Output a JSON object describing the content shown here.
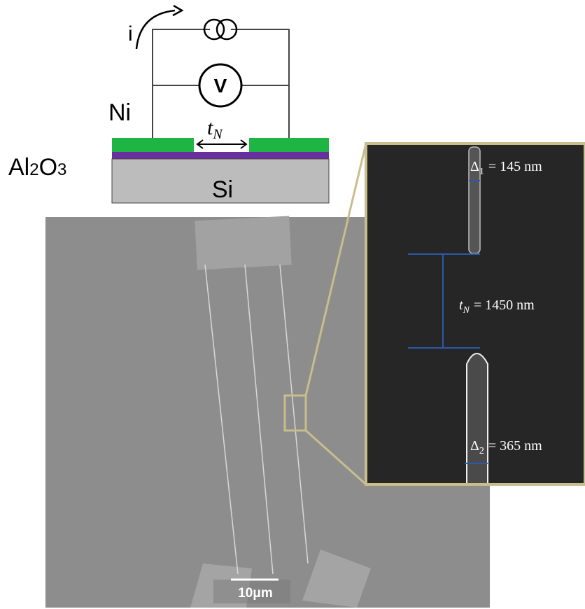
{
  "circuit": {
    "current_label": "i",
    "voltmeter_label": "V",
    "layers": {
      "ni": "Ni",
      "al2o3": {
        "a": "Al",
        "a_sub": "2",
        "b": "O",
        "b_sub": "3"
      },
      "si": "Si"
    },
    "gap_label": {
      "symbol": "t",
      "subscript": "N"
    }
  },
  "inset": {
    "delta1": {
      "symbol": "Δ",
      "subscript": "1",
      "text": "= 145 nm"
    },
    "gap": {
      "symbol": "t",
      "subscript": "N",
      "text": "= 1450 nm"
    },
    "delta2": {
      "symbol": "Δ",
      "subscript": "2",
      "text": "= 365 nm"
    }
  },
  "scale_bar": "10μm"
}
